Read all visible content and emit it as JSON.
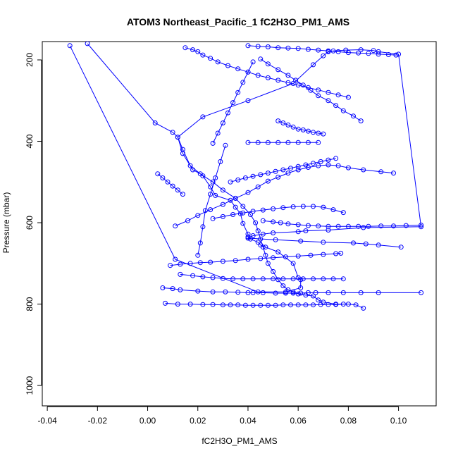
{
  "chart_data": {
    "type": "line",
    "title": "ATOM3 Northeast_Pacific_1 fC2H3O_PM1_AMS",
    "xlabel": "fC2H3O_PM1_AMS",
    "ylabel": "Pressure (mbar)",
    "xlim": [
      -0.042,
      0.115
    ],
    "ylim": [
      1050,
      155
    ],
    "y_reversed": true,
    "x_ticks": [
      -0.04,
      -0.02,
      0.0,
      0.02,
      0.04,
      0.06,
      0.08,
      0.1
    ],
    "x_tick_labels": [
      "-0.04",
      "-0.02",
      "0.00",
      "0.02",
      "0.04",
      "0.06",
      "0.08",
      "0.10"
    ],
    "y_ticks": [
      200,
      400,
      600,
      800,
      1000
    ],
    "y_tick_labels": [
      "200",
      "400",
      "600",
      "800",
      "1000"
    ],
    "line_color": "#0000ff",
    "marker": "open-circle",
    "grid": false,
    "series": [
      {
        "x": [
          -0.031,
          0.011,
          0.044,
          0.055,
          0.061,
          0.061,
          0.06,
          0.058,
          0.052,
          0.047,
          0.045,
          0.044,
          0.041,
          0.04,
          0.04,
          0.038,
          0.037,
          0.035,
          0.033,
          0.027,
          0.025,
          0.022,
          0.017,
          0.014,
          0.012,
          0.022,
          0.04,
          0.058,
          0.066,
          0.07,
          0.072,
          0.074,
          0.079,
          0.085,
          0.09,
          0.092,
          0.1,
          0.109,
          0.086,
          0.072,
          0.063,
          0.06,
          0.05,
          0.046,
          0.042,
          0.04,
          0.051,
          0.061,
          0.07,
          0.082,
          0.087,
          0.092,
          0.101
        ],
        "y": [
          165,
          690,
          770,
          770,
          760,
          740,
          735,
          700,
          672,
          660,
          655,
          648,
          640,
          635,
          628,
          602,
          578,
          562,
          545,
          533,
          512,
          485,
          460,
          420,
          390,
          340,
          300,
          258,
          212,
          190,
          180,
          178,
          176,
          175,
          177,
          180,
          186,
          610,
          612,
          618,
          620,
          622,
          625,
          628,
          632,
          638,
          642,
          645,
          648,
          650,
          652,
          655,
          660
        ]
      },
      {
        "x": [
          -0.024,
          0.003,
          0.01,
          0.012,
          0.014,
          0.018,
          0.021,
          0.026,
          0.03,
          0.035,
          0.038,
          0.041,
          0.043,
          0.044,
          0.045,
          0.046,
          0.047,
          0.048,
          0.05,
          0.052,
          0.054,
          0.056,
          0.058,
          0.06,
          0.063,
          0.066,
          0.068,
          0.07,
          0.075,
          0.08,
          0.083,
          0.086
        ],
        "y": [
          160,
          355,
          378,
          390,
          430,
          470,
          480,
          500,
          520,
          540,
          560,
          580,
          600,
          620,
          640,
          660,
          680,
          700,
          720,
          740,
          755,
          765,
          770,
          775,
          778,
          780,
          790,
          795,
          800,
          800,
          802,
          810
        ]
      },
      {
        "x": [
          0.006,
          0.01,
          0.013,
          0.02,
          0.026,
          0.031,
          0.036,
          0.04,
          0.042,
          0.046,
          0.051,
          0.055,
          0.058,
          0.061,
          0.064,
          0.067,
          0.072,
          0.078,
          0.085,
          0.092,
          0.109
        ],
        "y": [
          760,
          762,
          765,
          768,
          770,
          770,
          771,
          772,
          772,
          772,
          773,
          773,
          773,
          773,
          772,
          772,
          772,
          772,
          772,
          772,
          772
        ]
      },
      {
        "x": [
          0.007,
          0.012,
          0.017,
          0.022,
          0.026,
          0.03,
          0.033,
          0.036,
          0.039,
          0.042,
          0.045,
          0.048,
          0.051,
          0.054,
          0.057,
          0.06,
          0.063,
          0.066,
          0.069,
          0.072,
          0.075,
          0.078
        ],
        "y": [
          798,
          800,
          800,
          801,
          801,
          802,
          802,
          802,
          803,
          803,
          803,
          803,
          803,
          802,
          802,
          802,
          802,
          802,
          801,
          801,
          801,
          800
        ]
      },
      {
        "x": [
          0.009,
          0.013,
          0.017,
          0.021,
          0.025,
          0.03,
          0.035,
          0.04,
          0.045,
          0.05,
          0.055,
          0.06,
          0.065,
          0.07,
          0.075,
          0.077
        ],
        "y": [
          705,
          702,
          700,
          698,
          697,
          695,
          693,
          690,
          688,
          686,
          684,
          682,
          680,
          678,
          676,
          675
        ]
      },
      {
        "x": [
          0.013,
          0.018,
          0.022,
          0.026,
          0.03,
          0.034,
          0.038,
          0.042,
          0.046,
          0.05,
          0.054,
          0.058,
          0.062,
          0.066,
          0.07,
          0.074,
          0.078
        ],
        "y": [
          727,
          730,
          733,
          735,
          737,
          738,
          738,
          738,
          738,
          738,
          738,
          738,
          738,
          738,
          738,
          738,
          738
        ]
      },
      {
        "x": [
          0.046,
          0.05,
          0.053,
          0.056,
          0.06,
          0.064,
          0.068,
          0.072,
          0.076,
          0.08,
          0.084,
          0.088,
          0.093,
          0.098,
          0.103,
          0.109
        ],
        "y": [
          595,
          598,
          600,
          603,
          605,
          607,
          608,
          609,
          609,
          609,
          609,
          609,
          608,
          608,
          607,
          606
        ]
      },
      {
        "x": [
          0.026,
          0.03,
          0.034,
          0.038,
          0.042,
          0.046,
          0.05,
          0.054,
          0.058,
          0.062,
          0.066,
          0.07,
          0.074,
          0.078
        ],
        "y": [
          590,
          585,
          580,
          576,
          572,
          569,
          566,
          563,
          561,
          560,
          560,
          562,
          568,
          575
        ]
      },
      {
        "x": [
          0.011,
          0.016,
          0.02,
          0.025,
          0.03,
          0.035,
          0.04,
          0.044,
          0.048,
          0.052,
          0.056,
          0.06,
          0.064,
          0.068,
          0.072,
          0.076,
          0.08,
          0.086,
          0.093,
          0.098
        ],
        "y": [
          608,
          595,
          582,
          568,
          555,
          540,
          526,
          512,
          498,
          488,
          478,
          470,
          464,
          460,
          458,
          460,
          465,
          470,
          475,
          478
        ]
      },
      {
        "x": [
          0.033,
          0.036,
          0.039,
          0.042,
          0.045,
          0.048,
          0.051,
          0.054,
          0.057,
          0.06,
          0.063,
          0.066,
          0.069,
          0.072,
          0.075
        ],
        "y": [
          500,
          495,
          490,
          486,
          482,
          478,
          474,
          470,
          466,
          462,
          458,
          454,
          450,
          446,
          442
        ]
      },
      {
        "x": [
          0.04,
          0.044,
          0.048,
          0.052,
          0.056,
          0.06,
          0.064,
          0.068
        ],
        "y": [
          403,
          403,
          403,
          403,
          403,
          403,
          403,
          403
        ]
      },
      {
        "x": [
          0.026,
          0.028,
          0.03,
          0.032,
          0.034,
          0.036,
          0.038,
          0.04,
          0.042
        ],
        "y": [
          405,
          380,
          355,
          330,
          305,
          280,
          255,
          230,
          205
        ]
      },
      {
        "x": [
          0.015,
          0.018,
          0.02,
          0.022,
          0.025,
          0.028,
          0.032,
          0.036,
          0.04,
          0.044,
          0.048,
          0.052,
          0.056,
          0.06,
          0.064,
          0.068,
          0.072,
          0.076,
          0.08
        ],
        "y": [
          170,
          175,
          180,
          188,
          196,
          205,
          214,
          222,
          230,
          238,
          244,
          250,
          256,
          262,
          268,
          274,
          280,
          286,
          292
        ]
      },
      {
        "x": [
          0.04,
          0.044,
          0.048,
          0.052,
          0.056,
          0.06,
          0.064,
          0.068,
          0.072,
          0.076,
          0.08,
          0.084,
          0.088,
          0.092,
          0.096,
          0.099
        ],
        "y": [
          165,
          167,
          168,
          170,
          171,
          172,
          174,
          176,
          178,
          180,
          182,
          183,
          184,
          186,
          187,
          188
        ]
      },
      {
        "x": [
          0.045,
          0.048,
          0.052,
          0.056,
          0.059,
          0.062,
          0.065,
          0.068,
          0.072,
          0.075,
          0.078,
          0.082,
          0.085
        ],
        "y": [
          198,
          210,
          224,
          238,
          250,
          262,
          275,
          288,
          300,
          312,
          325,
          338,
          350
        ]
      },
      {
        "x": [
          0.052,
          0.054,
          0.056,
          0.058,
          0.06,
          0.062,
          0.064,
          0.066,
          0.068,
          0.07
        ],
        "y": [
          350,
          355,
          360,
          365,
          370,
          372,
          375,
          378,
          380,
          382
        ]
      },
      {
        "x": [
          0.02,
          0.021,
          0.022,
          0.023,
          0.025,
          0.027,
          0.029,
          0.031
        ],
        "y": [
          680,
          650,
          610,
          570,
          530,
          490,
          450,
          410
        ]
      },
      {
        "x": [
          0.004,
          0.006,
          0.008,
          0.01,
          0.012,
          0.014
        ],
        "y": [
          480,
          490,
          500,
          510,
          520,
          530
        ]
      }
    ]
  }
}
